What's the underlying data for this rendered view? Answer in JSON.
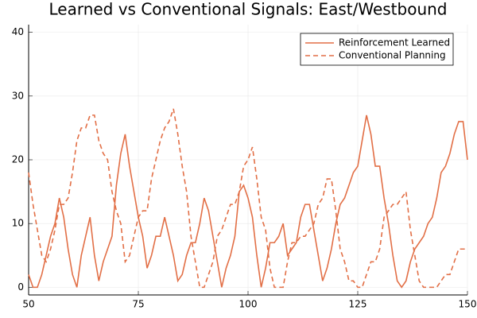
{
  "chart_data": {
    "type": "line",
    "title": "Learned vs Conventional Signals: East/Westbound",
    "x": [
      50,
      51,
      52,
      53,
      54,
      55,
      56,
      57,
      58,
      59,
      60,
      61,
      62,
      63,
      64,
      65,
      66,
      67,
      68,
      69,
      70,
      71,
      72,
      73,
      74,
      75,
      76,
      77,
      78,
      79,
      80,
      81,
      82,
      83,
      84,
      85,
      86,
      87,
      88,
      89,
      90,
      91,
      92,
      93,
      94,
      95,
      96,
      97,
      98,
      99,
      100,
      101,
      102,
      103,
      104,
      105,
      106,
      107,
      108,
      109,
      110,
      111,
      112,
      113,
      114,
      115,
      116,
      117,
      118,
      119,
      120,
      121,
      122,
      123,
      124,
      125,
      126,
      127,
      128,
      129,
      130,
      131,
      132,
      133,
      134,
      135,
      136,
      137,
      138,
      139,
      140,
      141,
      142,
      143,
      144,
      145,
      146,
      147,
      148,
      149,
      150
    ],
    "series": [
      {
        "name": "Reinforcement Learned",
        "color": "#e26f46",
        "dash": "solid",
        "values": [
          2,
          0,
          0,
          2,
          5,
          8,
          10,
          14,
          11,
          6,
          2,
          0,
          5,
          8,
          11,
          5,
          1,
          4,
          6,
          8,
          16,
          21,
          24,
          19,
          15,
          11,
          8,
          3,
          5,
          8,
          8,
          11,
          8,
          5,
          1,
          2,
          5,
          7,
          7,
          10,
          14,
          12,
          8,
          4,
          0,
          3,
          5,
          8,
          15,
          16,
          14,
          11,
          5,
          0,
          3,
          7,
          7,
          8,
          10,
          5,
          6,
          7,
          11,
          13,
          13,
          9,
          5,
          1,
          3,
          6,
          10,
          13,
          14,
          16,
          18,
          19,
          23,
          27,
          24,
          19,
          19,
          14,
          10,
          5,
          1,
          0,
          1,
          4,
          6,
          7,
          8,
          10,
          11,
          14,
          18,
          19,
          21,
          24,
          26,
          26,
          20
        ]
      },
      {
        "name": "Conventional Planning",
        "color": "#e26f46",
        "dash": "dashed",
        "values": [
          18,
          13,
          9,
          5,
          4,
          6,
          9,
          13,
          13,
          14,
          18,
          23,
          25,
          25,
          27,
          27,
          23,
          21,
          20,
          15,
          12,
          10,
          4,
          5,
          8,
          11,
          12,
          12,
          17,
          20,
          23,
          25,
          26,
          28,
          24,
          19,
          15,
          8,
          4,
          0,
          0,
          2,
          4,
          8,
          9,
          11,
          13,
          13,
          15,
          19,
          20,
          22,
          17,
          11,
          9,
          3,
          0,
          0,
          0,
          4,
          7,
          7,
          8,
          8,
          9,
          10,
          13,
          14,
          17,
          17,
          12,
          6,
          4,
          1,
          1,
          0,
          0,
          2,
          4,
          4,
          6,
          11,
          12,
          13,
          13,
          14,
          15,
          9,
          5,
          1,
          0,
          0,
          0,
          0,
          1,
          2,
          2,
          4,
          6,
          6,
          6
        ]
      }
    ],
    "xlim": [
      50,
      150
    ],
    "ylim": [
      -1.2,
      41.2
    ],
    "xticks": [
      50,
      75,
      100,
      125,
      150
    ],
    "yticks": [
      0,
      10,
      20,
      30,
      40
    ],
    "grid": true,
    "legend": "top-right"
  }
}
